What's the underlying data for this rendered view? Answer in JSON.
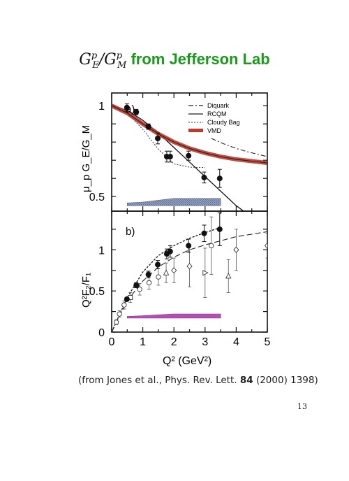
{
  "title": {
    "symbol": "G",
    "sup1": "p",
    "sub1": "E",
    "sup2": "p",
    "sub2": "M",
    "suffix": " from Jefferson Lab"
  },
  "citation": {
    "prefix": "(from Jones et al., Phys. Rev. Lett. ",
    "volume": "84",
    "suffix": " (2000) 1398)"
  },
  "page_number": "13",
  "colors": {
    "title_green": "#1a9a1a",
    "vmd_band": "#c0392b",
    "syst_band_a": "#7e8fb5",
    "syst_band_b": "#b44fb4"
  },
  "chart_data": [
    {
      "type": "line",
      "panel_label": "a)",
      "ylabel": "μ_p G_E/G_M",
      "xlim": [
        0,
        5
      ],
      "ylim": [
        0.42,
        1.07
      ],
      "yticks": [
        "1",
        "0.5"
      ],
      "legend": {
        "placement": "top-right",
        "entries": [
          "Diquark",
          "RCQM",
          "Cloudy Bag",
          "VMD"
        ]
      },
      "data": [
        {
          "x": 0.49,
          "y": 0.99,
          "err": 0.02
        },
        {
          "x": 0.79,
          "y": 0.965,
          "err": 0.015
        },
        {
          "x": 1.18,
          "y": 0.885,
          "err": 0.015
        },
        {
          "x": 1.48,
          "y": 0.82,
          "err": 0.03
        },
        {
          "x": 1.77,
          "y": 0.72,
          "err": 0.03
        },
        {
          "x": 1.88,
          "y": 0.72,
          "err": 0.03
        },
        {
          "x": 2.47,
          "y": 0.725,
          "err": 0.025
        },
        {
          "x": 2.97,
          "y": 0.605,
          "err": 0.03
        },
        {
          "x": 3.47,
          "y": 0.6,
          "err": 0.05
        }
      ],
      "series": [
        {
          "name": "Diquark",
          "x": [
            3.2,
            3.6,
            4.0,
            4.4,
            4.8,
            5.0
          ],
          "y": [
            0.82,
            0.79,
            0.765,
            0.745,
            0.728,
            0.72
          ]
        },
        {
          "name": "RCQM",
          "x": [
            0,
            0.5,
            1.0,
            1.5,
            2.0,
            2.5,
            3.0,
            3.5,
            4.0,
            4.4
          ],
          "y": [
            1.0,
            0.975,
            0.92,
            0.85,
            0.77,
            0.69,
            0.61,
            0.53,
            0.45,
            0.4
          ]
        },
        {
          "name": "Cloudy Bag",
          "x": [
            0,
            0.5,
            1.0,
            1.5,
            2.0,
            2.5,
            3.0
          ],
          "y": [
            1.0,
            0.96,
            0.87,
            0.76,
            0.68,
            0.662,
            0.66
          ]
        },
        {
          "name": "VMD",
          "x": [
            0,
            0.5,
            1.0,
            1.5,
            2.0,
            2.5,
            3.0,
            3.5,
            4.0,
            4.5,
            5.0
          ],
          "y": [
            1.0,
            0.96,
            0.9,
            0.845,
            0.8,
            0.765,
            0.74,
            0.72,
            0.705,
            0.695,
            0.685
          ]
        }
      ],
      "syst_band": {
        "x": [
          0.5,
          1.0,
          1.5,
          2.0,
          2.5,
          3.0,
          3.5
        ],
        "lo": [
          0.45,
          0.45,
          0.45,
          0.45,
          0.45,
          0.45,
          0.45
        ],
        "hi": [
          0.465,
          0.47,
          0.48,
          0.49,
          0.49,
          0.49,
          0.49
        ]
      }
    },
    {
      "type": "scatter",
      "panel_label": "b)",
      "ylabel": "Q²F₂/F₁",
      "xlabel": "Q² (GeV²)",
      "xlim": [
        0,
        5
      ],
      "ylim": [
        0,
        1.47
      ],
      "xticks": [
        "0",
        "1",
        "2",
        "3",
        "4",
        "5"
      ],
      "yticks": [
        "0",
        "0.5",
        "1"
      ],
      "jlab": [
        {
          "x": 0.49,
          "y": 0.4,
          "err": 0.02
        },
        {
          "x": 0.79,
          "y": 0.57,
          "err": 0.03
        },
        {
          "x": 1.18,
          "y": 0.7,
          "err": 0.04
        },
        {
          "x": 1.48,
          "y": 0.82,
          "err": 0.05
        },
        {
          "x": 1.77,
          "y": 0.95,
          "err": 0.06
        },
        {
          "x": 1.88,
          "y": 0.98,
          "err": 0.07
        },
        {
          "x": 2.47,
          "y": 1.05,
          "err": 0.08
        },
        {
          "x": 2.97,
          "y": 1.2,
          "err": 0.1
        },
        {
          "x": 3.47,
          "y": 1.25,
          "err": 0.2
        }
      ],
      "other": [
        {
          "x": 0.15,
          "y": 0.12,
          "err": 0.03,
          "sym": "open-circle"
        },
        {
          "x": 0.25,
          "y": 0.22,
          "err": 0.04,
          "sym": "open-circle"
        },
        {
          "x": 0.4,
          "y": 0.33,
          "err": 0.05,
          "sym": "open-circle"
        },
        {
          "x": 0.6,
          "y": 0.42,
          "err": 0.06,
          "sym": "open-square"
        },
        {
          "x": 0.9,
          "y": 0.52,
          "err": 0.07,
          "sym": "open-circle"
        },
        {
          "x": 1.2,
          "y": 0.6,
          "err": 0.08,
          "sym": "open-circle"
        },
        {
          "x": 1.5,
          "y": 0.67,
          "err": 0.1,
          "sym": "open-circle"
        },
        {
          "x": 1.75,
          "y": 0.72,
          "err": 0.12,
          "sym": "open-triangle"
        },
        {
          "x": 2.0,
          "y": 0.75,
          "err": 0.15,
          "sym": "open-diamond"
        },
        {
          "x": 2.5,
          "y": 0.8,
          "err": 0.25,
          "sym": "open-diamond"
        },
        {
          "x": 3.0,
          "y": 0.72,
          "err": 0.3,
          "sym": "open-triangle-right"
        },
        {
          "x": 3.2,
          "y": 1.05,
          "err": 0.35,
          "sym": "open-circle"
        },
        {
          "x": 3.75,
          "y": 0.68,
          "err": 0.2,
          "sym": "open-triangle"
        },
        {
          "x": 4.0,
          "y": 1.0,
          "err": 0.25,
          "sym": "open-diamond"
        },
        {
          "x": 5.0,
          "y": 1.05,
          "err": 0.15,
          "sym": "open-diamond"
        }
      ],
      "series": [
        {
          "name": "RCQM",
          "x": [
            0,
            0.5,
            1.0,
            1.5,
            2.0,
            2.5,
            3.0,
            3.5
          ],
          "y": [
            0,
            0.42,
            0.73,
            0.93,
            1.05,
            1.14,
            1.21,
            1.27
          ]
        },
        {
          "name": "VMD",
          "x": [
            0,
            0.5,
            1.0,
            1.5,
            2.0,
            2.5,
            3.0,
            3.5,
            4.0,
            4.5,
            5.0
          ],
          "y": [
            0,
            0.38,
            0.62,
            0.79,
            0.91,
            1.0,
            1.06,
            1.11,
            1.16,
            1.19,
            1.22
          ]
        }
      ],
      "syst_band": {
        "x": [
          0.5,
          1.0,
          1.5,
          2.0,
          2.5,
          3.0,
          3.5
        ],
        "lo": [
          0.17,
          0.17,
          0.17,
          0.17,
          0.17,
          0.17,
          0.17
        ],
        "hi": [
          0.19,
          0.2,
          0.21,
          0.22,
          0.22,
          0.22,
          0.22
        ]
      }
    }
  ]
}
